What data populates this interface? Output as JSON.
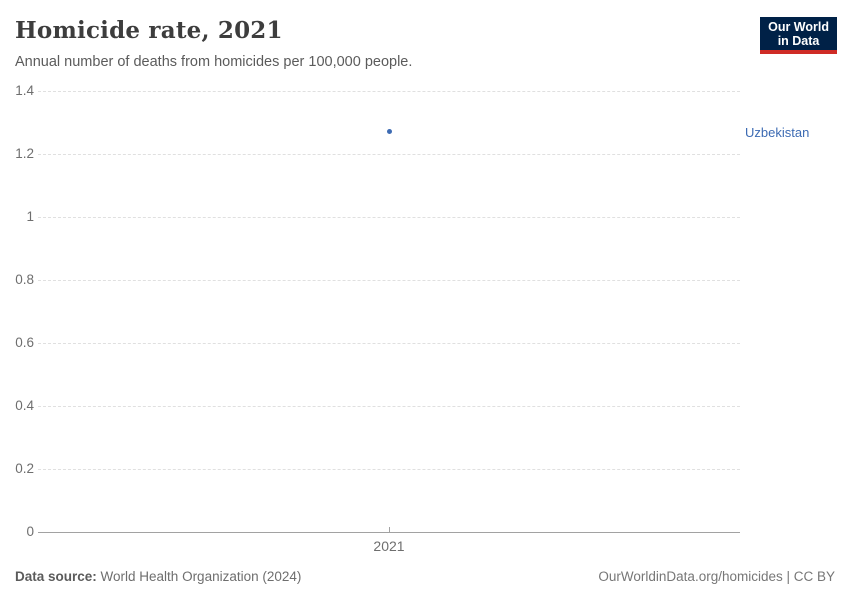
{
  "header": {
    "title": "Homicide rate, 2021",
    "subtitle": "Annual number of deaths from homicides per 100,000 people.",
    "logo": {
      "line1": "Our World",
      "line2": "in Data"
    }
  },
  "chart_data": {
    "type": "scatter",
    "title": "Homicide rate, 2021",
    "subtitle": "Annual number of deaths from homicides per 100,000 people.",
    "x": [
      2021
    ],
    "xticks": [
      "2021"
    ],
    "series": [
      {
        "name": "Uzbekistan",
        "values": [
          1.27
        ]
      }
    ],
    "ylim": [
      0,
      1.4
    ],
    "yticks": [
      0,
      0.2,
      0.4,
      0.6,
      0.8,
      1,
      1.2,
      1.4
    ],
    "grid": true,
    "legend_position": "right-of-point",
    "point_color": "#3d6bb3",
    "label_color": "#3d6bb3"
  },
  "footer": {
    "source_label": "Data source:",
    "source_value": " World Health Organization (2024)",
    "attribution": "OurWorldinData.org/homicides | CC BY"
  },
  "colors": {
    "logo_bg": "#002147",
    "logo_stripe": "#cf2b26",
    "gridline": "#e0e0e0",
    "axis_line": "#a2a2a2",
    "accent_blue": "#3d6bb3"
  }
}
